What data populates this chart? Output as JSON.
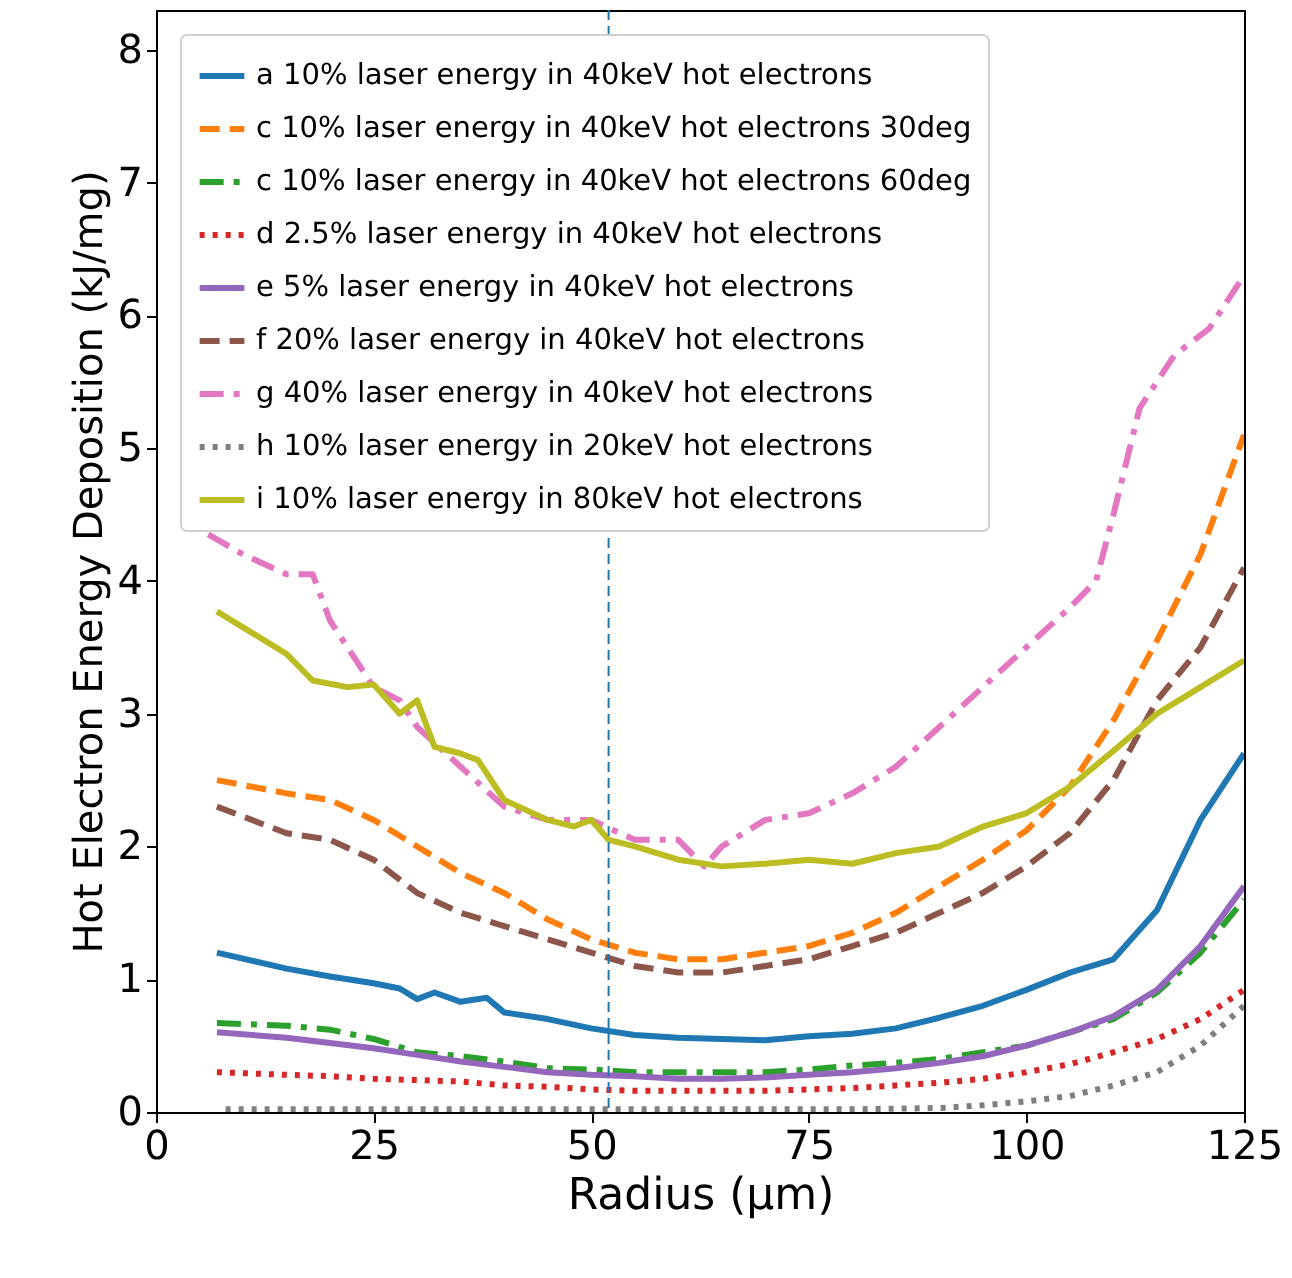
{
  "chart_data": {
    "type": "line",
    "xlabel": "Radius  (μm)",
    "ylabel": "Hot Electron Energy Deposition (kJ/mg)",
    "xlim": [
      0,
      125
    ],
    "ylim": [
      0,
      8.3
    ],
    "xticks": [
      0,
      25,
      50,
      75,
      100,
      125
    ],
    "yticks": [
      0,
      1,
      2,
      3,
      4,
      5,
      6,
      7,
      8
    ],
    "grid": false,
    "legend": "top left",
    "ref_lines": [
      {
        "axis": "x",
        "value": 52,
        "color": "#1f77b4",
        "line_style": "dashed"
      }
    ],
    "series": [
      {
        "name": "a  10% laser energy in 40keV hot electrons",
        "color": "#1f77b4",
        "line_style": "solid",
        "x": [
          7,
          15,
          20,
          25,
          28,
          30,
          32,
          35,
          38,
          40,
          45,
          50,
          55,
          60,
          65,
          70,
          75,
          80,
          85,
          90,
          95,
          100,
          105,
          110,
          115,
          120,
          125
        ],
        "values": [
          1.2,
          1.08,
          1.02,
          0.97,
          0.93,
          0.85,
          0.9,
          0.83,
          0.86,
          0.75,
          0.7,
          0.63,
          0.58,
          0.56,
          0.55,
          0.54,
          0.57,
          0.59,
          0.63,
          0.71,
          0.8,
          0.92,
          1.05,
          1.15,
          1.52,
          2.2,
          2.7
        ]
      },
      {
        "name": "c 10% laser energy in 40keV hot electrons 30deg",
        "color": "#ff7f0e",
        "line_style": "dashed",
        "x": [
          7,
          15,
          20,
          25,
          30,
          35,
          40,
          45,
          50,
          55,
          60,
          65,
          70,
          75,
          80,
          85,
          90,
          95,
          100,
          105,
          110,
          115,
          120,
          125
        ],
        "values": [
          2.5,
          2.4,
          2.35,
          2.2,
          2.0,
          1.8,
          1.65,
          1.45,
          1.3,
          1.2,
          1.15,
          1.15,
          1.2,
          1.25,
          1.35,
          1.5,
          1.7,
          1.9,
          2.12,
          2.45,
          2.95,
          3.55,
          4.2,
          5.1
        ]
      },
      {
        "name": "c 10% laser energy in 40keV hot electrons 60deg",
        "color": "#2ca02c",
        "line_style": "dashdot",
        "x": [
          7,
          15,
          20,
          25,
          30,
          35,
          40,
          45,
          50,
          55,
          60,
          65,
          70,
          75,
          80,
          85,
          90,
          95,
          100,
          105,
          110,
          115,
          120,
          125
        ],
        "values": [
          0.67,
          0.65,
          0.62,
          0.55,
          0.45,
          0.42,
          0.38,
          0.33,
          0.32,
          0.3,
          0.3,
          0.3,
          0.3,
          0.32,
          0.35,
          0.37,
          0.4,
          0.45,
          0.5,
          0.6,
          0.7,
          0.9,
          1.2,
          1.6
        ]
      },
      {
        "name": "d 2.5% laser energy in 40keV hot electrons",
        "color": "#d62728",
        "line_style": "dotted",
        "x": [
          7,
          15,
          20,
          25,
          30,
          35,
          40,
          45,
          50,
          55,
          60,
          65,
          70,
          75,
          80,
          85,
          90,
          95,
          100,
          105,
          110,
          115,
          120,
          125
        ],
        "values": [
          0.3,
          0.28,
          0.27,
          0.25,
          0.24,
          0.23,
          0.2,
          0.19,
          0.17,
          0.16,
          0.16,
          0.16,
          0.16,
          0.17,
          0.18,
          0.2,
          0.22,
          0.25,
          0.3,
          0.36,
          0.45,
          0.55,
          0.7,
          0.92
        ]
      },
      {
        "name": "e 5% laser energy in 40keV hot electrons",
        "color": "#9467bd",
        "line_style": "solid",
        "x": [
          7,
          15,
          20,
          25,
          30,
          35,
          40,
          45,
          50,
          55,
          60,
          65,
          70,
          75,
          80,
          85,
          90,
          95,
          100,
          105,
          110,
          115,
          120,
          125
        ],
        "values": [
          0.6,
          0.56,
          0.52,
          0.48,
          0.43,
          0.38,
          0.34,
          0.3,
          0.28,
          0.27,
          0.25,
          0.25,
          0.26,
          0.28,
          0.3,
          0.33,
          0.37,
          0.42,
          0.5,
          0.6,
          0.72,
          0.92,
          1.25,
          1.7
        ]
      },
      {
        "name": "f 20% laser energy in 40keV hot electrons",
        "color": "#8c564b",
        "line_style": "dashed",
        "x": [
          7,
          15,
          20,
          25,
          30,
          35,
          40,
          45,
          50,
          55,
          60,
          65,
          70,
          75,
          80,
          85,
          90,
          95,
          100,
          105,
          110,
          115,
          120,
          125
        ],
        "values": [
          2.3,
          2.1,
          2.05,
          1.9,
          1.65,
          1.5,
          1.4,
          1.3,
          1.2,
          1.1,
          1.05,
          1.05,
          1.1,
          1.15,
          1.25,
          1.35,
          1.5,
          1.65,
          1.85,
          2.1,
          2.5,
          3.1,
          3.5,
          4.1
        ]
      },
      {
        "name": "g 40% laser energy in 40keV hot electrons",
        "color": "#e377c2",
        "line_style": "dashdot",
        "x": [
          6,
          10,
          15,
          18,
          20,
          22,
          25,
          28,
          30,
          35,
          40,
          45,
          50,
          55,
          60,
          63,
          65,
          70,
          75,
          80,
          85,
          90,
          95,
          100,
          105,
          108,
          110,
          113,
          117,
          121,
          125
        ],
        "values": [
          4.35,
          4.2,
          4.05,
          4.05,
          3.7,
          3.5,
          3.2,
          3.1,
          2.9,
          2.6,
          2.3,
          2.2,
          2.2,
          2.05,
          2.05,
          1.85,
          2.0,
          2.2,
          2.25,
          2.4,
          2.6,
          2.9,
          3.2,
          3.5,
          3.8,
          4.0,
          4.5,
          5.3,
          5.7,
          5.9,
          6.3
        ]
      },
      {
        "name": "h  10% laser energy in 20keV hot electrons",
        "color": "#7f7f7f",
        "line_style": "dotted",
        "x": [
          8,
          20,
          40,
          60,
          80,
          90,
          95,
          100,
          105,
          110,
          115,
          120,
          125
        ],
        "values": [
          0.02,
          0.02,
          0.02,
          0.02,
          0.02,
          0.03,
          0.05,
          0.08,
          0.12,
          0.2,
          0.3,
          0.5,
          0.8
        ]
      },
      {
        "name": "i 10% laser energy in 80keV hot electrons",
        "color": "#bcbd22",
        "line_style": "solid",
        "x": [
          7,
          10,
          15,
          18,
          22,
          25,
          28,
          30,
          32,
          35,
          37,
          40,
          45,
          48,
          50,
          52,
          55,
          60,
          65,
          70,
          75,
          80,
          85,
          90,
          95,
          100,
          105,
          110,
          115,
          120,
          125
        ],
        "values": [
          3.77,
          3.65,
          3.45,
          3.25,
          3.2,
          3.22,
          3.0,
          3.1,
          2.75,
          2.7,
          2.65,
          2.35,
          2.2,
          2.15,
          2.2,
          2.05,
          2.0,
          1.9,
          1.85,
          1.87,
          1.9,
          1.87,
          1.95,
          2.0,
          2.15,
          2.25,
          2.45,
          2.72,
          3.0,
          3.2,
          3.4
        ]
      }
    ]
  }
}
